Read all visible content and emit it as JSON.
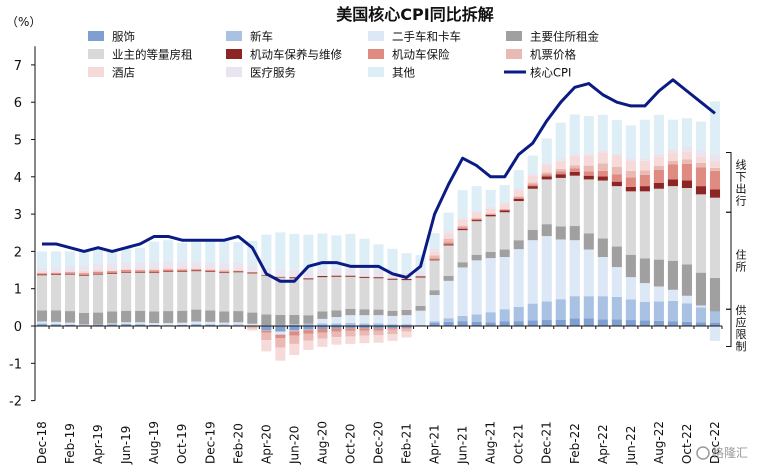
{
  "chart_data": {
    "type": "bar",
    "title": "美国核心CPI同比拆解",
    "unit_label": "（%）",
    "ylim": [
      -2,
      7.5
    ],
    "yticks": [
      7,
      6,
      5,
      4,
      3,
      2,
      1,
      0,
      -1,
      -2
    ],
    "legend_position": "top",
    "legend_columns": 4,
    "grid": false,
    "x": [
      "Dec-18",
      "Jan-19",
      "Feb-19",
      "Mar-19",
      "Apr-19",
      "May-19",
      "Jun-19",
      "Jul-19",
      "Aug-19",
      "Sep-19",
      "Oct-19",
      "Nov-19",
      "Dec-19",
      "Jan-20",
      "Feb-20",
      "Mar-20",
      "Apr-20",
      "May-20",
      "Jun-20",
      "Jul-20",
      "Aug-20",
      "Sep-20",
      "Oct-20",
      "Nov-20",
      "Dec-20",
      "Jan-21",
      "Feb-21",
      "Mar-21",
      "Apr-21",
      "May-21",
      "Jun-21",
      "Jul-21",
      "Aug-21",
      "Sep-21",
      "Oct-21",
      "Nov-21",
      "Dec-21",
      "Jan-22",
      "Feb-22",
      "Mar-22",
      "Apr-22",
      "May-22",
      "Jun-22",
      "Jul-22",
      "Aug-22",
      "Sep-22",
      "Oct-22",
      "Nov-22",
      "Dec-22"
    ],
    "xtick_labels": [
      "Dec-18",
      "Feb-19",
      "Apr-19",
      "Jun-19",
      "Aug-19",
      "Oct-19",
      "Dec-19",
      "Feb-20",
      "Apr-20",
      "Jun-20",
      "Aug-20",
      "Oct-20",
      "Dec-20",
      "Feb-21",
      "Apr-21",
      "Jun-21",
      "Aug-21",
      "Oct-21",
      "Dec-21",
      "Feb-22",
      "Apr-22",
      "Jun-22",
      "Aug-22",
      "Oct-22",
      "Dec-22"
    ],
    "series": [
      {
        "name": "服饰",
        "type": "bar",
        "color": "#7f9fd0",
        "values": [
          0.05,
          0.04,
          0.03,
          0.02,
          0.03,
          0.04,
          0.05,
          0.04,
          0.03,
          0.02,
          0.03,
          0.04,
          0.03,
          0.02,
          0.02,
          -0.02,
          -0.12,
          -0.15,
          -0.12,
          -0.1,
          -0.08,
          -0.07,
          -0.06,
          -0.06,
          -0.07,
          -0.06,
          -0.04,
          0.0,
          0.08,
          0.11,
          0.13,
          0.11,
          0.1,
          0.12,
          0.13,
          0.15,
          0.16,
          0.17,
          0.2,
          0.2,
          0.18,
          0.18,
          0.16,
          0.15,
          0.14,
          0.12,
          0.11,
          0.1,
          0.09
        ]
      },
      {
        "name": "新车",
        "type": "bar",
        "color": "#a9c2e4",
        "values": [
          0.02,
          0.01,
          0.01,
          0.0,
          0.01,
          0.01,
          0.01,
          0.0,
          -0.01,
          0.0,
          0.0,
          0.01,
          0.02,
          0.02,
          0.02,
          0.01,
          0.02,
          0.03,
          0.05,
          0.06,
          0.07,
          0.07,
          0.08,
          0.07,
          0.07,
          0.05,
          0.05,
          0.03,
          0.05,
          0.1,
          0.14,
          0.2,
          0.27,
          0.33,
          0.38,
          0.45,
          0.5,
          0.55,
          0.6,
          0.6,
          0.62,
          0.6,
          0.55,
          0.5,
          0.52,
          0.55,
          0.5,
          0.4,
          0.3
        ]
      },
      {
        "name": "二手车和卡车",
        "type": "bar",
        "color": "#dde8f6",
        "values": [
          0.05,
          0.06,
          0.05,
          0.02,
          0.0,
          0.02,
          0.04,
          0.06,
          0.05,
          0.06,
          0.06,
          0.07,
          0.06,
          0.05,
          0.06,
          0.05,
          -0.01,
          -0.08,
          -0.02,
          -0.01,
          0.12,
          0.17,
          0.21,
          0.22,
          0.22,
          0.22,
          0.24,
          0.38,
          0.7,
          1.0,
          1.3,
          1.45,
          1.45,
          1.4,
          1.55,
          1.7,
          1.75,
          1.6,
          1.5,
          1.25,
          1.05,
          0.8,
          0.6,
          0.5,
          0.4,
          0.3,
          0.2,
          0.05,
          -0.4
        ]
      },
      {
        "name": "主要住所租金",
        "type": "bar",
        "color": "#a0a0a0",
        "values": [
          0.3,
          0.31,
          0.31,
          0.31,
          0.32,
          0.32,
          0.31,
          0.31,
          0.31,
          0.32,
          0.32,
          0.32,
          0.31,
          0.3,
          0.3,
          0.3,
          0.29,
          0.27,
          0.25,
          0.23,
          0.2,
          0.18,
          0.17,
          0.16,
          0.15,
          0.14,
          0.14,
          0.13,
          0.13,
          0.13,
          0.14,
          0.15,
          0.17,
          0.2,
          0.24,
          0.28,
          0.32,
          0.35,
          0.38,
          0.43,
          0.5,
          0.55,
          0.6,
          0.66,
          0.72,
          0.78,
          0.84,
          0.88,
          0.9
        ]
      },
      {
        "name": "业主的等量房租",
        "type": "bar",
        "color": "#d9d9d9",
        "values": [
          0.94,
          0.95,
          0.98,
          1.0,
          1.02,
          1.01,
          1.02,
          1.02,
          1.03,
          1.05,
          1.04,
          1.03,
          1.03,
          1.03,
          1.04,
          1.05,
          1.03,
          1.0,
          0.98,
          0.96,
          0.92,
          0.9,
          0.86,
          0.84,
          0.84,
          0.83,
          0.8,
          0.76,
          0.8,
          0.82,
          0.86,
          0.9,
          0.95,
          1.0,
          1.05,
          1.1,
          1.2,
          1.3,
          1.35,
          1.45,
          1.55,
          1.62,
          1.7,
          1.8,
          1.9,
          2.0,
          2.05,
          2.1,
          2.15
        ]
      },
      {
        "name": "机动车保养与维修",
        "type": "bar",
        "color": "#8c2523",
        "values": [
          0.02,
          0.02,
          0.02,
          0.02,
          0.02,
          0.02,
          0.02,
          0.02,
          0.02,
          0.02,
          0.02,
          0.02,
          0.02,
          0.02,
          0.02,
          0.02,
          0.02,
          0.02,
          0.03,
          0.03,
          0.03,
          0.03,
          0.03,
          0.03,
          0.03,
          0.03,
          0.03,
          0.03,
          0.02,
          0.03,
          0.03,
          0.03,
          0.04,
          0.05,
          0.06,
          0.07,
          0.08,
          0.1,
          0.1,
          0.1,
          0.11,
          0.12,
          0.12,
          0.14,
          0.16,
          0.18,
          0.2,
          0.22,
          0.22
        ]
      },
      {
        "name": "机动车保险",
        "type": "bar",
        "color": "#e08b82",
        "values": [
          0.03,
          0.03,
          0.04,
          0.04,
          0.05,
          0.05,
          0.05,
          0.04,
          0.05,
          0.04,
          0.04,
          0.03,
          0.03,
          0.03,
          0.02,
          0.02,
          -0.05,
          -0.1,
          -0.12,
          -0.1,
          -0.1,
          -0.08,
          -0.07,
          -0.06,
          -0.05,
          -0.04,
          -0.03,
          0.0,
          0.03,
          0.05,
          0.04,
          0.03,
          0.02,
          0.02,
          0.04,
          0.05,
          0.06,
          0.08,
          0.1,
          0.12,
          0.15,
          0.2,
          0.25,
          0.3,
          0.35,
          0.4,
          0.45,
          0.5,
          0.5
        ]
      },
      {
        "name": "机票价格",
        "type": "bar",
        "color": "#e9b9b4",
        "values": [
          0.01,
          0.01,
          0.01,
          0.02,
          0.02,
          0.01,
          0.01,
          0.01,
          0.02,
          0.02,
          0.02,
          0.01,
          0.01,
          0.02,
          0.01,
          -0.05,
          -0.2,
          -0.25,
          -0.22,
          -0.18,
          -0.16,
          -0.15,
          -0.15,
          -0.14,
          -0.13,
          -0.12,
          -0.08,
          0.02,
          0.08,
          0.1,
          0.05,
          0.03,
          0.02,
          0.02,
          0.03,
          0.05,
          0.05,
          0.06,
          0.08,
          0.15,
          0.2,
          0.2,
          0.18,
          0.12,
          0.1,
          0.1,
          0.12,
          0.12,
          0.08
        ]
      },
      {
        "name": "酒店",
        "type": "bar",
        "color": "#f6dada",
        "values": [
          0.04,
          0.04,
          0.04,
          0.05,
          0.05,
          0.04,
          0.04,
          0.04,
          0.04,
          0.04,
          0.04,
          0.04,
          0.04,
          0.04,
          0.03,
          -0.05,
          -0.3,
          -0.35,
          -0.3,
          -0.25,
          -0.22,
          -0.2,
          -0.2,
          -0.2,
          -0.2,
          -0.18,
          -0.16,
          0.0,
          0.1,
          0.15,
          0.16,
          0.14,
          0.12,
          0.13,
          0.16,
          0.18,
          0.2,
          0.22,
          0.25,
          0.28,
          0.3,
          0.3,
          0.28,
          0.26,
          0.25,
          0.22,
          0.2,
          0.18,
          0.18
        ]
      },
      {
        "name": "医疗服务",
        "type": "bar",
        "color": "#e8e4f0",
        "values": [
          0.1,
          0.1,
          0.12,
          0.14,
          0.16,
          0.17,
          0.17,
          0.18,
          0.18,
          0.18,
          0.17,
          0.17,
          0.17,
          0.17,
          0.17,
          0.18,
          0.2,
          0.2,
          0.2,
          0.2,
          0.21,
          0.21,
          0.2,
          0.2,
          0.19,
          0.18,
          0.17,
          0.12,
          0.09,
          0.07,
          0.06,
          0.06,
          0.06,
          0.06,
          0.06,
          0.06,
          0.06,
          0.06,
          0.05,
          0.05,
          0.05,
          0.05,
          0.05,
          0.06,
          0.08,
          0.1,
          0.15,
          0.18,
          0.2
        ]
      },
      {
        "name": "其他",
        "type": "bar",
        "color": "#ddeef6",
        "values": [
          0.44,
          0.43,
          0.39,
          0.37,
          0.42,
          0.34,
          0.38,
          0.38,
          0.53,
          0.55,
          0.49,
          0.51,
          0.55,
          0.57,
          0.56,
          0.65,
          0.89,
          0.99,
          0.96,
          0.97,
          0.93,
          0.87,
          0.92,
          0.82,
          0.69,
          0.62,
          0.52,
          0.43,
          0.41,
          0.48,
          0.73,
          0.65,
          0.45,
          0.45,
          0.48,
          0.48,
          0.65,
          0.96,
          1.06,
          1.0,
          0.95,
          0.9,
          0.89,
          1.04,
          1.04,
          0.78,
          0.75,
          0.75,
          1.4
        ]
      },
      {
        "name": "核心CPI",
        "type": "line",
        "color": "#0b1b84",
        "values": [
          2.2,
          2.2,
          2.1,
          2.0,
          2.1,
          2.0,
          2.1,
          2.2,
          2.4,
          2.4,
          2.3,
          2.3,
          2.3,
          2.3,
          2.4,
          2.1,
          1.4,
          1.2,
          1.2,
          1.6,
          1.7,
          1.7,
          1.6,
          1.6,
          1.6,
          1.4,
          1.3,
          1.6,
          3.0,
          3.8,
          4.5,
          4.3,
          4.0,
          4.0,
          4.6,
          4.9,
          5.5,
          6.0,
          6.4,
          6.5,
          6.2,
          6.0,
          5.9,
          5.9,
          6.3,
          6.6,
          6.3,
          6.0,
          5.7
        ]
      }
    ],
    "annotations": [
      {
        "text": "线下出行",
        "ymin": 3.05,
        "ymax": 4.65
      },
      {
        "text": "住所",
        "ymin": 0.45,
        "ymax": 3.05
      },
      {
        "text": "供应限制",
        "ymin": -0.55,
        "ymax": 0.45
      }
    ]
  },
  "watermark": "格隆汇"
}
